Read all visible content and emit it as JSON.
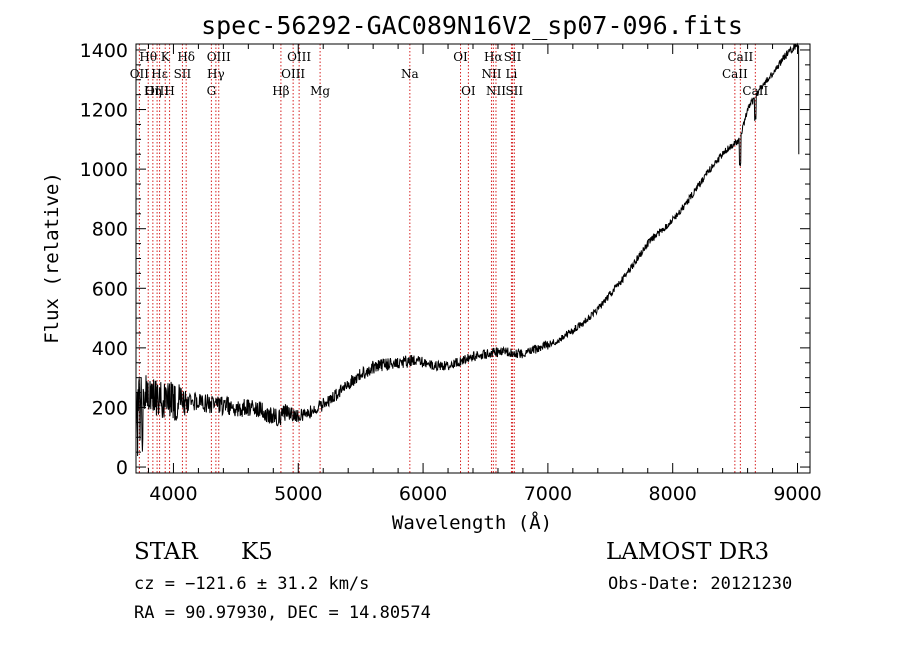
{
  "chart_data": {
    "type": "line",
    "title": "spec-56292-GAC089N16V2_sp07-096.fits",
    "xlabel": "Wavelength (Å)",
    "ylabel": "Flux (relative)",
    "xlim": [
      3700,
      9100
    ],
    "ylim": [
      -20,
      1420
    ],
    "x_ticks": [
      4000,
      5000,
      6000,
      7000,
      8000,
      9000
    ],
    "y_ticks": [
      0,
      200,
      400,
      600,
      800,
      1000,
      1200,
      1400
    ],
    "x_tick_labels": [
      "4000",
      "5000",
      "6000",
      "7000",
      "8000",
      "9000"
    ],
    "y_tick_labels": [
      "0",
      "200",
      "400",
      "600",
      "800",
      "1000",
      "1200",
      "1400"
    ],
    "spectrum_trend": {
      "x": [
        3700,
        3750,
        3800,
        3900,
        4000,
        4100,
        4200,
        4300,
        4400,
        4500,
        4600,
        4700,
        4800,
        4850,
        4900,
        5000,
        5100,
        5200,
        5300,
        5400,
        5500,
        5600,
        5700,
        5800,
        5900,
        6000,
        6100,
        6200,
        6300,
        6400,
        6500,
        6600,
        6700,
        6800,
        6900,
        7000,
        7100,
        7200,
        7300,
        7400,
        7500,
        7600,
        7700,
        7800,
        7900,
        8000,
        8100,
        8200,
        8300,
        8400,
        8500,
        8540,
        8600,
        8700,
        8800,
        8900,
        9000
      ],
      "y": [
        230,
        260,
        240,
        230,
        220,
        210,
        220,
        210,
        205,
        200,
        195,
        190,
        170,
        165,
        185,
        170,
        185,
        210,
        240,
        280,
        310,
        335,
        345,
        350,
        355,
        350,
        340,
        340,
        355,
        370,
        380,
        385,
        385,
        380,
        395,
        410,
        430,
        460,
        490,
        530,
        580,
        630,
        690,
        750,
        790,
        830,
        880,
        940,
        1000,
        1050,
        1090,
        1100,
        1200,
        1270,
        1320,
        1380,
        1420
      ]
    },
    "emission_lines": [
      {
        "label": "Hθ",
        "wavelength": 3798,
        "row": 1
      },
      {
        "label": "OII",
        "wavelength": 3727,
        "row": 2
      },
      {
        "label": "OIII",
        "wavelength": 3869,
        "row": 3
      },
      {
        "label": "K",
        "wavelength": 3934,
        "row": 1
      },
      {
        "label": "Hε",
        "wavelength": 3889,
        "row": 2
      },
      {
        "label": "Hη",
        "wavelength": 3835,
        "row": 3
      },
      {
        "label": "H",
        "wavelength": 3969,
        "row": 3
      },
      {
        "label": "SII",
        "wavelength": 4072,
        "row": 2
      },
      {
        "label": "Hδ",
        "wavelength": 4102,
        "row": 1
      },
      {
        "label": "OIII",
        "wavelength": 4363,
        "row": 1
      },
      {
        "label": "Hγ",
        "wavelength": 4340,
        "row": 2
      },
      {
        "label": "G",
        "wavelength": 4304,
        "row": 3
      },
      {
        "label": "Hβ",
        "wavelength": 4861,
        "row": 3
      },
      {
        "label": "OIII",
        "wavelength": 5007,
        "row": 1
      },
      {
        "label": "OIII",
        "wavelength": 4959,
        "row": 2
      },
      {
        "label": "Mg",
        "wavelength": 5175,
        "row": 3
      },
      {
        "label": "Na",
        "wavelength": 5894,
        "row": 2
      },
      {
        "label": "OI",
        "wavelength": 6300,
        "row": 1
      },
      {
        "label": "OI",
        "wavelength": 6363,
        "row": 3
      },
      {
        "label": "Hα",
        "wavelength": 6563,
        "row": 1
      },
      {
        "label": "NII",
        "wavelength": 6548,
        "row": 2
      },
      {
        "label": "NII",
        "wavelength": 6584,
        "row": 3
      },
      {
        "label": "SII",
        "wavelength": 6717,
        "row": 1
      },
      {
        "label": "Li",
        "wavelength": 6708,
        "row": 2
      },
      {
        "label": "SII",
        "wavelength": 6731,
        "row": 3
      },
      {
        "label": "CaII",
        "wavelength": 8542,
        "row": 1
      },
      {
        "label": "CaII",
        "wavelength": 8498,
        "row": 2
      },
      {
        "label": "CaII",
        "wavelength": 8662,
        "row": 3
      }
    ],
    "colors": {
      "spectrum": "#000000",
      "line_marker": "#d62020",
      "axis": "#000000"
    }
  },
  "info": {
    "class": "STAR",
    "subclass": "K5",
    "survey": "LAMOST DR3",
    "cz": "cz = −121.6 ± 31.2 km/s",
    "obs_date": "Obs-Date: 20121230",
    "coords": "RA =  90.97930, DEC =  14.80574"
  }
}
